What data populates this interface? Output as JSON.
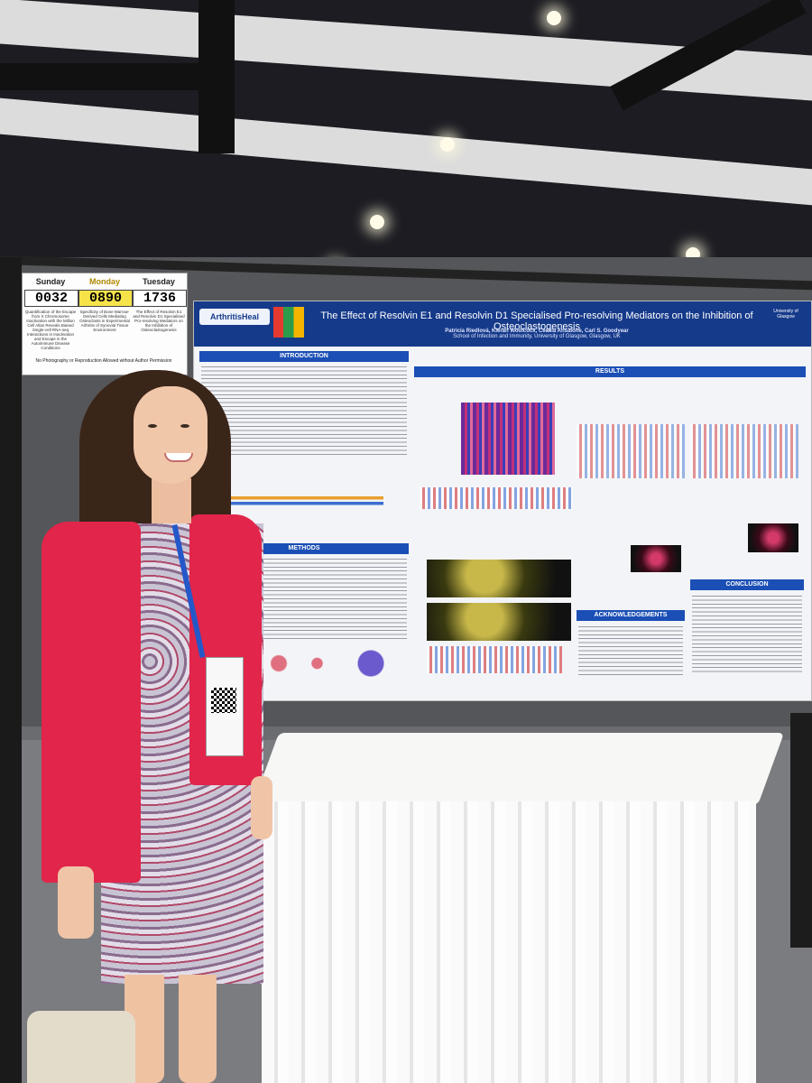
{
  "schedule": {
    "days": [
      {
        "label": "Sunday",
        "number": "0032",
        "highlight": false,
        "desc": "Quantification of the Escape from X Chromosome Inactivation with the Million Cell Atlas Reveals Biased Single-cell RNA-seq Interactions in Inactivation and Escape in the Autoimmune Disease Conditions"
      },
      {
        "label": "Monday",
        "number": "0890",
        "highlight": true,
        "desc": "Specificity of Bone Marrow-Derived Cells Mediating Osteoclasts in Experimental Arthritis of Synovial Tissue Environment"
      },
      {
        "label": "Tuesday",
        "number": "1736",
        "highlight": false,
        "desc": "The Effect of Resolvin E1 and Resolvin D1 Specialised Pro-resolving Mediators on the Inhibition of Osteoclastogenesis"
      }
    ],
    "footer": "No Photography or Reproduction Allowed without Author Permission"
  },
  "poster": {
    "logo_left": "ArthritisHeal",
    "title": "The Effect of Resolvin E1 and Resolvin D1 Specialised Pro-resolving Mediators on the Inhibition of Osteoclastogenesis",
    "authors": "Patricia Riedlová, Kieran Woolcock, Cecilia Ansalone, Carl S. Goodyear",
    "affiliation": "School of Infection and Immunity, University of Glasgow, Glasgow, UK",
    "logo_right": "University of Glasgow",
    "sections": {
      "introduction": "INTRODUCTION",
      "methods": "METHODS",
      "results": "RESULTS",
      "acknowledgements": "ACKNOWLEDGEMENTS",
      "conclusion": "CONCLUSION"
    }
  }
}
